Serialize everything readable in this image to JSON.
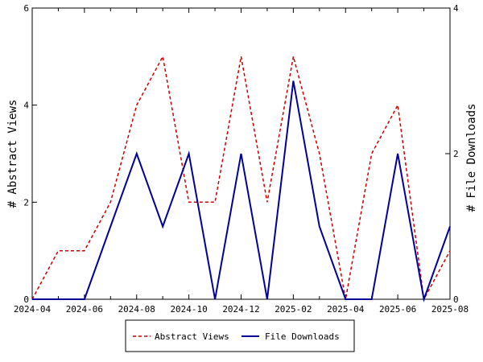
{
  "chart_data": {
    "type": "line",
    "x": [
      "2024-04",
      "2024-05",
      "2024-06",
      "2024-07",
      "2024-08",
      "2024-09",
      "2024-10",
      "2024-11",
      "2024-12",
      "2025-01",
      "2025-02",
      "2025-03",
      "2025-04",
      "2025-05",
      "2025-06",
      "2025-07",
      "2025-08"
    ],
    "x_tick_labels": [
      "2024-04",
      "2024-06",
      "2024-08",
      "2024-10",
      "2024-12",
      "2025-02",
      "2025-04",
      "2025-06",
      "2025-08"
    ],
    "ylabel": "# Abstract Views",
    "y2label": "# File Downloads",
    "ylim": [
      0,
      6
    ],
    "y2lim": [
      0,
      4
    ],
    "y_ticks": [
      0,
      2,
      4,
      6
    ],
    "y2_ticks": [
      0,
      2,
      4
    ],
    "grid": false,
    "legend_position": "bottom",
    "series": [
      {
        "name": "Abstract Views",
        "axis": "left",
        "color": "#cc0000",
        "style": "dashed",
        "values": [
          0,
          1,
          1,
          2,
          4,
          5,
          2,
          2,
          5,
          2,
          5,
          3,
          0,
          3,
          4,
          0,
          1
        ]
      },
      {
        "name": "File Downloads",
        "axis": "right",
        "color": "#000099",
        "style": "solid",
        "values": [
          0,
          0,
          0,
          1,
          2,
          1,
          2,
          0,
          2,
          0,
          3,
          1,
          0,
          0,
          2,
          0,
          1
        ]
      }
    ]
  }
}
